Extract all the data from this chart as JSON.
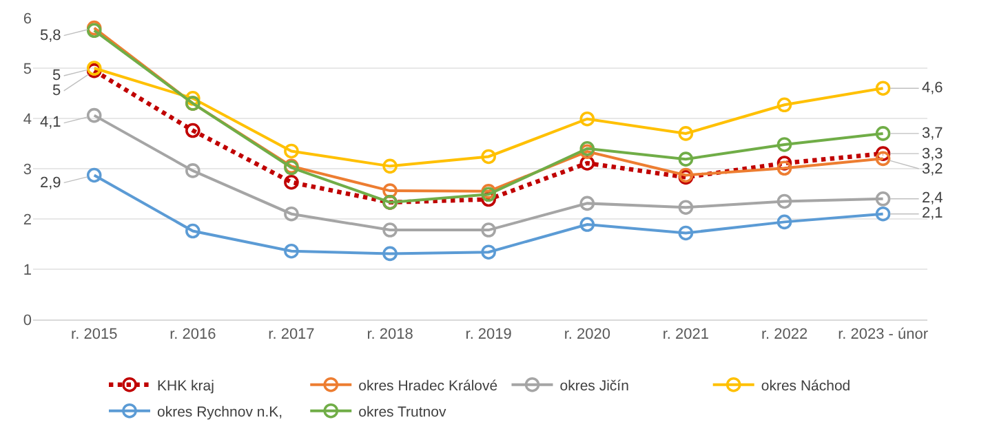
{
  "chart_data": {
    "type": "line",
    "categories": [
      "r. 2015",
      "r. 2016",
      "r. 2017",
      "r. 2018",
      "r. 2019",
      "r. 2020",
      "r. 2021",
      "r. 2022",
      "r. 2023 - únor"
    ],
    "series": [
      {
        "name": "KHK kraj",
        "color": "#c00000",
        "line_style": "dotted",
        "values": [
          4.95,
          3.76,
          2.73,
          2.33,
          2.39,
          3.11,
          2.83,
          3.11,
          3.3
        ],
        "value_labels": [
          "5",
          null,
          null,
          null,
          null,
          null,
          null,
          null,
          "3,3"
        ]
      },
      {
        "name": "okres Hradec Králové",
        "color": "#ed7d31",
        "values": [
          5.8,
          4.3,
          3.05,
          2.56,
          2.55,
          3.34,
          2.87,
          3.01,
          3.2
        ],
        "value_labels": [
          "5,8",
          null,
          null,
          null,
          null,
          null,
          null,
          null,
          "3,2"
        ]
      },
      {
        "name": "okres Jičín",
        "color": "#a5a5a5",
        "values": [
          4.06,
          2.96,
          2.1,
          1.78,
          1.78,
          2.31,
          2.23,
          2.35,
          2.4
        ],
        "value_labels": [
          "4,1",
          null,
          null,
          null,
          null,
          null,
          null,
          null,
          "2,4"
        ]
      },
      {
        "name": "okres Náchod",
        "color": "#ffc000",
        "values": [
          5.0,
          4.4,
          3.35,
          3.05,
          3.24,
          3.99,
          3.7,
          4.27,
          4.6
        ],
        "value_labels": [
          "5",
          null,
          null,
          null,
          null,
          null,
          null,
          null,
          "4,6"
        ]
      },
      {
        "name": "okres Rychnov n.K,",
        "color": "#5b9bd5",
        "values": [
          2.87,
          1.76,
          1.36,
          1.31,
          1.34,
          1.89,
          1.72,
          1.94,
          2.1
        ],
        "value_labels": [
          "2,9",
          null,
          null,
          null,
          null,
          null,
          null,
          null,
          "2,1"
        ]
      },
      {
        "name": "okres Trutnov",
        "color": "#70ad47",
        "values": [
          5.75,
          4.3,
          3.02,
          2.33,
          2.49,
          3.4,
          3.19,
          3.48,
          3.7
        ],
        "value_labels": [
          null,
          null,
          null,
          null,
          null,
          null,
          null,
          null,
          "3,7"
        ]
      }
    ],
    "ylim": [
      0,
      6
    ],
    "yticks": [
      0,
      1,
      2,
      3,
      4,
      5,
      6
    ],
    "grid": "y",
    "legend": "bottom",
    "marker": "circle",
    "line_style": "solid"
  }
}
